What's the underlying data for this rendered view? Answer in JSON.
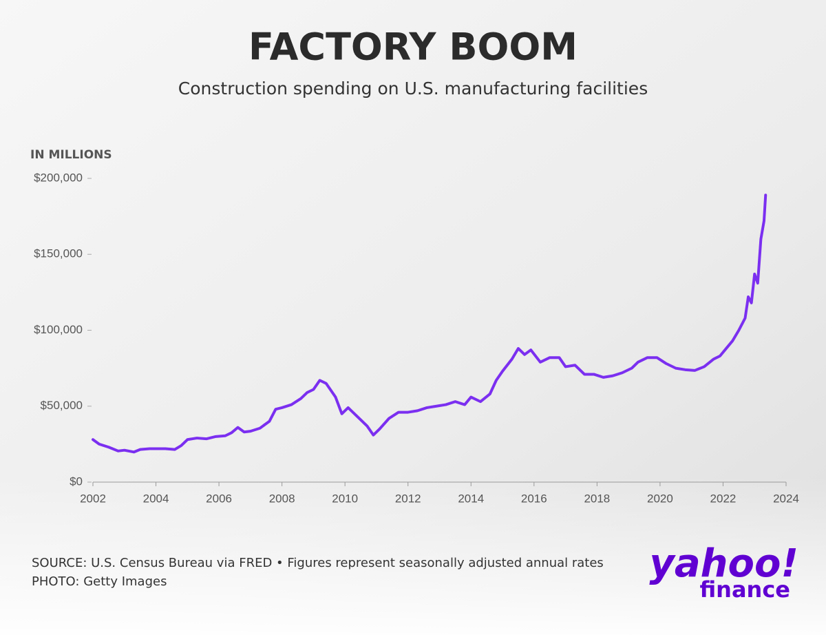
{
  "chart_data": {
    "type": "line",
    "title": "FACTORY BOOM",
    "subtitle": "Construction spending on U.S. manufacturing facilities",
    "y_label": "IN MILLIONS",
    "source": "SOURCE: U.S. Census Bureau via FRED • Figures represent seasonally adjusted annual rates",
    "photo_credit": "PHOTO: Getty Images",
    "logo": {
      "brand": "yahoo!",
      "product": "finance"
    },
    "xlim": [
      2002,
      2024
    ],
    "xticks": [
      2002,
      2004,
      2006,
      2008,
      2010,
      2012,
      2014,
      2016,
      2018,
      2020,
      2022,
      2024
    ],
    "ylim": [
      0,
      200000
    ],
    "yticks": [
      {
        "value": 0,
        "label": "$0"
      },
      {
        "value": 50000,
        "label": "$50,000"
      },
      {
        "value": 100000,
        "label": "$100,000"
      },
      {
        "value": 150000,
        "label": "$150,000"
      },
      {
        "value": 200000,
        "label": "$200,000"
      }
    ],
    "grid": false,
    "series": [
      {
        "color": "#7b2ff0",
        "x": [
          2002.0,
          2002.2,
          2002.5,
          2002.8,
          2003.0,
          2003.3,
          2003.5,
          2003.8,
          2004.0,
          2004.3,
          2004.6,
          2004.8,
          2005.0,
          2005.3,
          2005.6,
          2005.9,
          2006.2,
          2006.4,
          2006.6,
          2006.8,
          2007.0,
          2007.3,
          2007.6,
          2007.8,
          2008.0,
          2008.3,
          2008.6,
          2008.8,
          2009.0,
          2009.2,
          2009.4,
          2009.7,
          2009.9,
          2010.1,
          2010.4,
          2010.7,
          2010.9,
          2011.1,
          2011.4,
          2011.7,
          2012.0,
          2012.3,
          2012.6,
          2012.9,
          2013.2,
          2013.5,
          2013.8,
          2014.0,
          2014.3,
          2014.6,
          2014.8,
          2015.0,
          2015.3,
          2015.5,
          2015.7,
          2015.9,
          2016.2,
          2016.5,
          2016.8,
          2017.0,
          2017.3,
          2017.6,
          2017.9,
          2018.2,
          2018.5,
          2018.8,
          2019.1,
          2019.3,
          2019.6,
          2019.9,
          2020.2,
          2020.5,
          2020.8,
          2021.1,
          2021.4,
          2021.7,
          2021.9,
          2022.1,
          2022.3,
          2022.5,
          2022.7,
          2022.8,
          2022.9,
          2023.0,
          2023.1,
          2023.2,
          2023.3,
          2023.35
        ],
        "values": [
          28000,
          25000,
          23000,
          20500,
          21000,
          19800,
          21500,
          22000,
          22000,
          22000,
          21500,
          24000,
          28000,
          29000,
          28500,
          30000,
          30500,
          32500,
          36000,
          33000,
          33500,
          35500,
          40000,
          48000,
          49000,
          51000,
          55000,
          59000,
          61000,
          67000,
          65000,
          56000,
          45000,
          49000,
          43000,
          37000,
          31000,
          35000,
          42000,
          46000,
          46000,
          47000,
          49000,
          50000,
          51000,
          53000,
          51000,
          56000,
          53000,
          58000,
          67000,
          73000,
          81000,
          88000,
          84000,
          87000,
          79000,
          82000,
          82000,
          76000,
          77000,
          71000,
          71000,
          69000,
          70000,
          72000,
          75000,
          79000,
          82000,
          82000,
          78000,
          75000,
          74000,
          73500,
          76000,
          81000,
          83000,
          88000,
          93000,
          100000,
          108000,
          122000,
          118000,
          137000,
          131000,
          160000,
          172000,
          189000
        ]
      }
    ]
  }
}
